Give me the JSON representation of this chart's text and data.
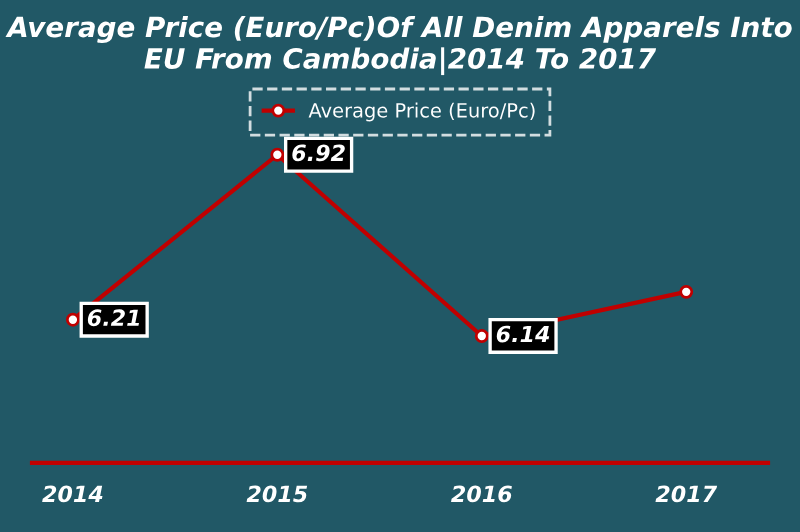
{
  "chart_data": {
    "type": "line",
    "title": "Average Price (Euro/Pc)Of All Denim Apparels Into EU From Cambodia|2014 To 2017",
    "categories": [
      "2014",
      "2015",
      "2016",
      "2017"
    ],
    "series": [
      {
        "name": "Average Price (Euro/Pc)",
        "color": "#c00000",
        "values": [
          6.21,
          6.92,
          6.14,
          6.33
        ],
        "value_labels": [
          "6.21",
          "6.92",
          "6.14",
          null
        ]
      }
    ],
    "marker": "circle",
    "line_style": "solid",
    "legend": "top",
    "grid": false
  }
}
